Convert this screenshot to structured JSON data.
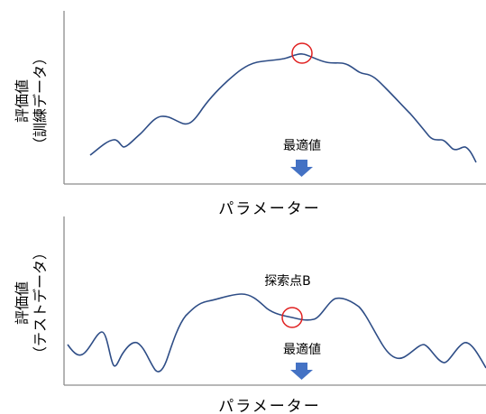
{
  "top_panel": {
    "y_label_line1": "評価値",
    "y_label_line2": "（訓練データ）",
    "x_label": "パラメーター",
    "marker_label": "最適値"
  },
  "bottom_panel": {
    "y_label_line1": "評価値",
    "y_label_line2": "（テストデータ）",
    "x_label": "パラメーター",
    "marker_label": "最適値",
    "point_label": "探索点B"
  },
  "colors": {
    "curve": "#2e4d86",
    "axis": "#8c8c8c",
    "highlight": "#e02020",
    "arrow": "#4472c4"
  }
}
